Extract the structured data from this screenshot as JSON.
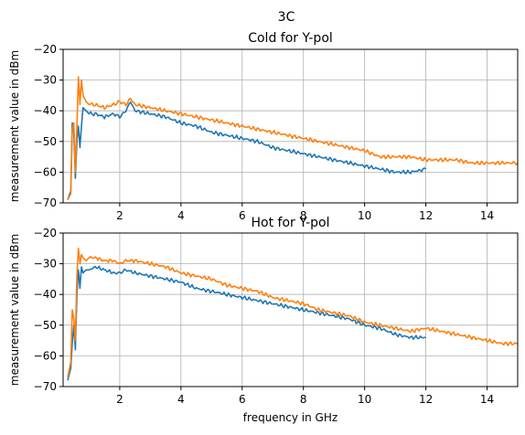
{
  "figure": {
    "suptitle": "3C"
  },
  "colors": {
    "series1": "#1f77b4",
    "series2": "#ff7f0e",
    "grid": "#b0b0b0",
    "axes": "#000000"
  },
  "chart_data": [
    {
      "type": "line",
      "title": "Cold for Y-pol",
      "xlabel": "",
      "ylabel": "measurement value in dBm",
      "xlim": [
        0.15,
        15.0
      ],
      "ylim": [
        -70,
        -20
      ],
      "xticks": [
        2,
        4,
        6,
        8,
        10,
        12,
        14
      ],
      "yticks": [
        -20,
        -30,
        -40,
        -50,
        -60,
        -70
      ],
      "grid": true,
      "series": [
        {
          "color": "#1f77b4",
          "x": [
            0.3,
            0.4,
            0.45,
            0.5,
            0.55,
            0.6,
            0.65,
            0.7,
            0.75,
            0.8,
            0.9,
            1.0,
            1.2,
            1.5,
            1.8,
            2.0,
            2.2,
            2.35,
            2.5,
            3.0,
            3.5,
            4.0,
            4.5,
            5.0,
            5.5,
            6.0,
            6.5,
            7.0,
            7.5,
            8.0,
            8.5,
            9.0,
            9.5,
            10.0,
            10.5,
            11.0,
            11.5,
            12.0
          ],
          "y": [
            -69,
            -66,
            -44,
            -47,
            -62,
            -50,
            -45,
            -52,
            -45,
            -39,
            -40,
            -41,
            -41,
            -42,
            -41,
            -42,
            -40,
            -37,
            -40,
            -41,
            -42,
            -44,
            -45,
            -47,
            -48,
            -49,
            -50,
            -52,
            -53,
            -54,
            -55,
            -56,
            -57,
            -58,
            -59,
            -60,
            -60,
            -59
          ]
        },
        {
          "color": "#ff7f0e",
          "x": [
            0.3,
            0.4,
            0.45,
            0.5,
            0.55,
            0.6,
            0.65,
            0.7,
            0.75,
            0.8,
            0.9,
            1.0,
            1.2,
            1.5,
            1.8,
            2.0,
            2.2,
            2.35,
            2.5,
            3.0,
            3.5,
            4.0,
            4.5,
            5.0,
            5.5,
            6.0,
            6.5,
            7.0,
            7.5,
            8.0,
            8.5,
            9.0,
            9.5,
            10.0,
            10.5,
            11.0,
            11.5,
            12.0,
            12.5,
            13.0,
            13.5,
            14.0,
            14.5,
            15.0
          ],
          "y": [
            -69,
            -67,
            -46,
            -44,
            -60,
            -45,
            -29,
            -38,
            -30,
            -35,
            -37,
            -38,
            -38,
            -39,
            -38,
            -37,
            -38,
            -36,
            -38,
            -39,
            -40,
            -41,
            -42,
            -43,
            -44,
            -45,
            -46,
            -47,
            -48,
            -49,
            -50,
            -51,
            -52,
            -53,
            -55,
            -55,
            -55,
            -56,
            -56,
            -56,
            -57,
            -57,
            -57,
            -57
          ]
        }
      ]
    },
    {
      "type": "line",
      "title": "Hot for Y-pol",
      "xlabel": "frequency in GHz",
      "ylabel": "measurement value in dBm",
      "xlim": [
        0.15,
        15.0
      ],
      "ylim": [
        -70,
        -20
      ],
      "xticks": [
        2,
        4,
        6,
        8,
        10,
        12,
        14
      ],
      "yticks": [
        -20,
        -30,
        -40,
        -50,
        -60,
        -70
      ],
      "grid": true,
      "series": [
        {
          "color": "#1f77b4",
          "x": [
            0.3,
            0.4,
            0.45,
            0.5,
            0.55,
            0.6,
            0.65,
            0.7,
            0.75,
            0.8,
            0.9,
            1.0,
            1.2,
            1.5,
            1.8,
            2.0,
            2.2,
            2.5,
            3.0,
            3.5,
            4.0,
            4.5,
            5.0,
            5.5,
            6.0,
            6.5,
            7.0,
            7.5,
            8.0,
            8.5,
            9.0,
            9.5,
            10.0,
            10.5,
            11.0,
            11.5,
            12.0
          ],
          "y": [
            -68,
            -64,
            -56,
            -50,
            -58,
            -40,
            -32,
            -38,
            -31,
            -33,
            -32,
            -32,
            -31,
            -32,
            -33,
            -33,
            -32,
            -33,
            -34,
            -35,
            -36,
            -38,
            -39,
            -40,
            -41,
            -42,
            -43,
            -44,
            -45,
            -46,
            -47,
            -48,
            -50,
            -51,
            -53,
            -54,
            -54
          ]
        },
        {
          "color": "#ff7f0e",
          "x": [
            0.3,
            0.4,
            0.45,
            0.5,
            0.55,
            0.6,
            0.65,
            0.7,
            0.75,
            0.8,
            0.9,
            1.0,
            1.2,
            1.5,
            1.8,
            2.0,
            2.2,
            2.5,
            3.0,
            3.5,
            4.0,
            4.5,
            5.0,
            5.5,
            6.0,
            6.5,
            7.0,
            7.5,
            8.0,
            8.5,
            9.0,
            9.5,
            10.0,
            10.5,
            11.0,
            11.5,
            12.0,
            12.5,
            13.0,
            13.5,
            14.0,
            14.5,
            15.0
          ],
          "y": [
            -67,
            -62,
            -45,
            -48,
            -55,
            -34,
            -25,
            -30,
            -27,
            -28,
            -29,
            -28,
            -28,
            -29,
            -29,
            -30,
            -29,
            -29,
            -30,
            -31,
            -33,
            -34,
            -35,
            -37,
            -38,
            -39,
            -41,
            -42,
            -43,
            -45,
            -46,
            -47,
            -49,
            -50,
            -51,
            -52,
            -51,
            -52,
            -53,
            -54,
            -55,
            -56,
            -56
          ]
        }
      ]
    }
  ]
}
